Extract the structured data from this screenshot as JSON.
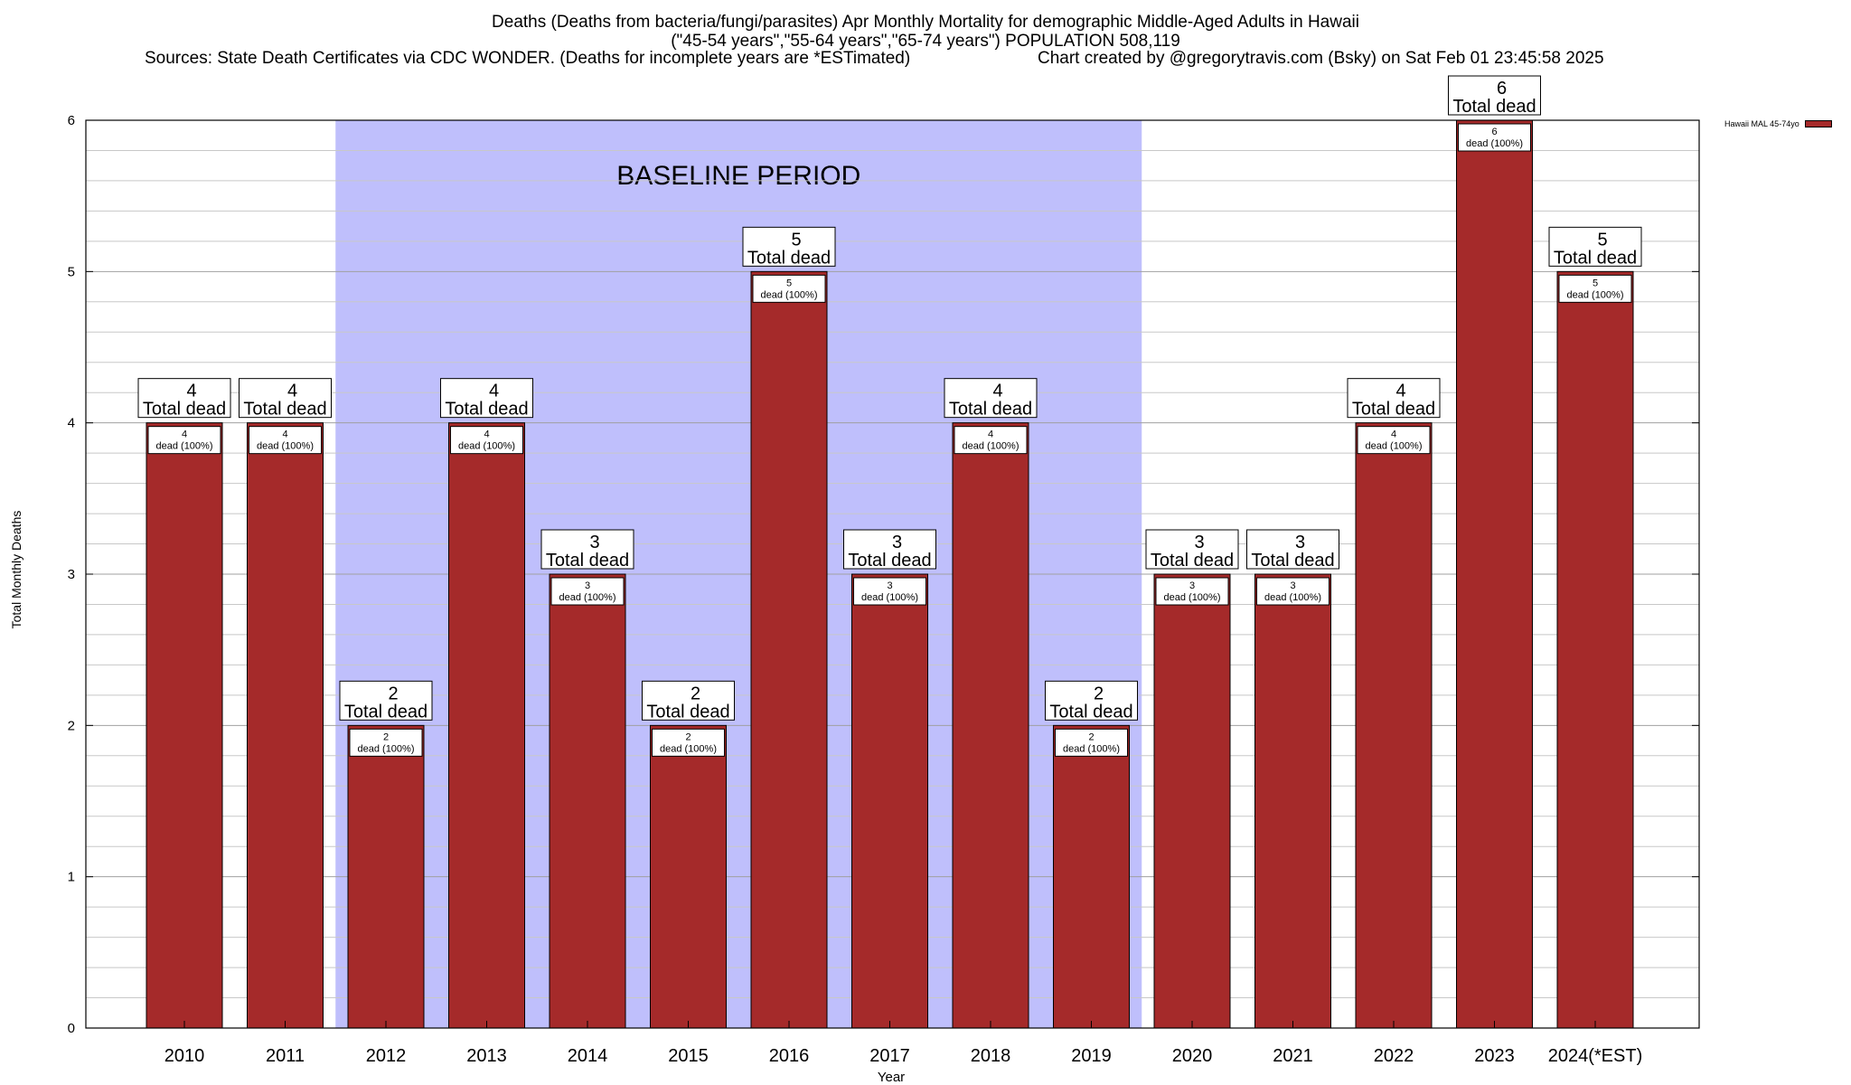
{
  "title": {
    "line1": "Deaths (Deaths from bacteria/fungi/parasites) Apr Monthly Mortality for demographic Middle-Aged Adults in Hawaii",
    "line2": "(\"45-54 years\",\"55-64 years\",\"65-74 years\") POPULATION 508,119",
    "sources": "Sources: State Death Certificates via CDC WONDER. (Deaths for incomplete years are *ESTimated)",
    "credit": "Chart created by @gregorytravis.com (Bsky) on Sat Feb 01 23:45:58 2025"
  },
  "legend": {
    "label": "Hawaii MAL 45-74yo",
    "color": "#a52a2a"
  },
  "colors": {
    "bar": "#a52a2a",
    "baseline_band": "#bfbffc",
    "grid": "#c8c8c8"
  },
  "chart_data": {
    "type": "bar",
    "title": "Deaths (Deaths from bacteria/fungi/parasites) Apr Monthly Mortality for demographic Middle-Aged Adults in Hawaii",
    "xlabel": "Year",
    "ylabel": "Total Monthly Deaths",
    "ylim": [
      0,
      6
    ],
    "yticks": [
      0,
      1,
      2,
      3,
      4,
      5,
      6
    ],
    "grid": true,
    "legend_position": "top-right",
    "categories": [
      "2010",
      "2011",
      "2012",
      "2013",
      "2014",
      "2015",
      "2016",
      "2017",
      "2018",
      "2019",
      "2020",
      "2021",
      "2022",
      "2023",
      "2024(*EST)"
    ],
    "series": [
      {
        "name": "Hawaii MAL 45-74yo",
        "values": [
          4,
          4,
          2,
          4,
          3,
          2,
          5,
          3,
          4,
          2,
          3,
          3,
          4,
          6,
          5
        ]
      }
    ],
    "total_label_suffix": "Total dead",
    "inner_label_suffix": "dead (100%)",
    "baseline_period": {
      "label": "BASELINE PERIOD",
      "start": "2012",
      "end": "2019"
    }
  }
}
